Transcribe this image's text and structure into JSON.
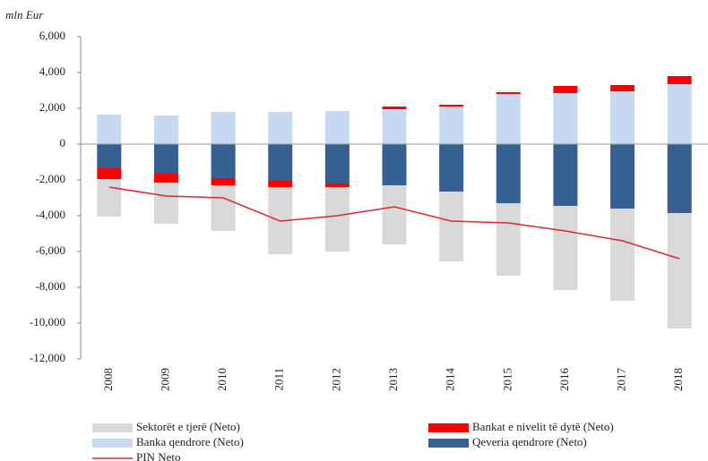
{
  "chart_data": {
    "type": "bar",
    "unit_label": "mln Eur",
    "categories": [
      "2008",
      "2009",
      "2010",
      "2011",
      "2012",
      "2013",
      "2014",
      "2015",
      "2016",
      "2017",
      "2018"
    ],
    "series": [
      {
        "name": "Sektorët e tjerë (Neto)",
        "color": "#d9d9d9",
        "values": [
          -2100,
          -2300,
          -2550,
          -3750,
          -3600,
          -3300,
          -3900,
          -4050,
          -4700,
          -5150,
          -6450
        ]
      },
      {
        "name": "Bankat e nivelit të dytë (Neto)",
        "color": "#ff0000",
        "values": [
          -600,
          -500,
          -400,
          -350,
          -200,
          150,
          100,
          100,
          400,
          350,
          450
        ]
      },
      {
        "name": "Banka qendrore (Neto)",
        "color": "#c6d9f1",
        "values": [
          1650,
          1600,
          1800,
          1800,
          1850,
          1950,
          2100,
          2800,
          2850,
          2950,
          3350
        ]
      },
      {
        "name": "Qeveria qendrore (Neto)",
        "color": "#366092",
        "values": [
          -1350,
          -1650,
          -1900,
          -2050,
          -2200,
          -2300,
          -2650,
          -3300,
          -3450,
          -3600,
          -3850
        ]
      },
      {
        "name": "PIN Neto",
        "type": "line",
        "color": "#e3262b",
        "values": [
          -2400,
          -2900,
          -3000,
          -4300,
          -4000,
          -3500,
          -4300,
          -4400,
          -4850,
          -5400,
          -6400
        ]
      }
    ],
    "ylim": [
      -12000,
      6000
    ],
    "yticks": [
      {
        "value": -12000,
        "label": "-12,000"
      },
      {
        "value": -10000,
        "label": "-10,000"
      },
      {
        "value": -8000,
        "label": "-8,000"
      },
      {
        "value": -6000,
        "label": "-6,000"
      },
      {
        "value": -4000,
        "label": "-4,000"
      },
      {
        "value": -2000,
        "label": "-2,000"
      },
      0,
      {
        "value": 2000,
        "label": "2,000"
      },
      {
        "value": 4000,
        "label": "4,000"
      },
      {
        "value": 6000,
        "label": "6,000"
      }
    ]
  }
}
